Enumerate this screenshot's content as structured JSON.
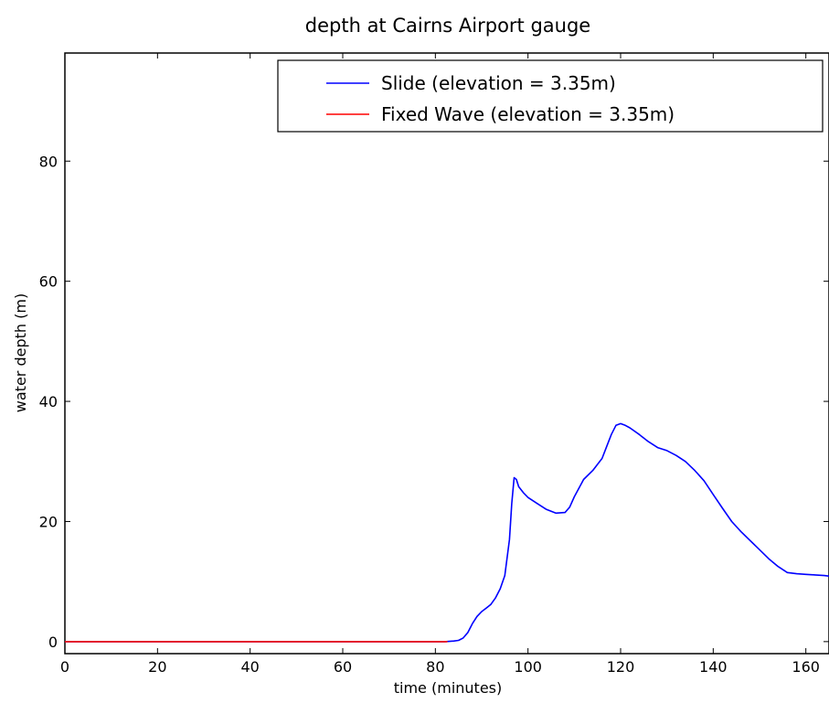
{
  "chart_data": {
    "type": "line",
    "title": "depth at Cairns Airport gauge",
    "xlabel": "time (minutes)",
    "ylabel": "water depth (m)",
    "xlim": [
      0,
      165
    ],
    "ylim": [
      -2,
      98
    ],
    "xticks": [
      0,
      20,
      40,
      60,
      80,
      100,
      120,
      140,
      160
    ],
    "yticks": [
      0,
      20,
      40,
      60,
      80
    ],
    "grid": false,
    "legend_position": "top-right",
    "series": [
      {
        "name": "Slide (elevation = 3.35m)",
        "color": "#0000ff",
        "x": [
          0,
          20,
          40,
          60,
          80,
          82,
          84,
          85,
          86,
          87,
          88,
          89,
          90,
          91,
          92,
          93,
          94,
          95,
          96,
          96.5,
          97,
          97.5,
          98,
          99,
          100,
          102,
          104,
          106,
          108,
          109,
          110,
          112,
          114,
          116,
          117,
          118,
          119,
          120,
          121,
          122,
          124,
          126,
          128,
          130,
          132,
          134,
          136,
          138,
          140,
          142,
          144,
          146,
          148,
          150,
          152,
          154,
          156,
          158,
          160,
          162,
          164,
          165
        ],
        "y": [
          0,
          0,
          0,
          0,
          0,
          0,
          0.1,
          0.2,
          0.6,
          1.5,
          3,
          4.2,
          5,
          5.6,
          6.2,
          7.3,
          8.8,
          11,
          17,
          23,
          27.3,
          27,
          25.8,
          24.8,
          24,
          23,
          22,
          21.4,
          21.5,
          22.4,
          24.1,
          27,
          28.5,
          30.5,
          32.5,
          34.5,
          36,
          36.3,
          36,
          35.6,
          34.5,
          33.3,
          32.3,
          31.8,
          31,
          30,
          28.5,
          26.8,
          24.5,
          22.2,
          20,
          18.3,
          16.8,
          15.3,
          13.8,
          12.5,
          11.5,
          11.3,
          11.2,
          11.1,
          11,
          10.9
        ]
      },
      {
        "name": "Fixed Wave (elevation = 3.35m)",
        "color": "#ff0000",
        "x": [
          0,
          20,
          40,
          60,
          80,
          82.5
        ],
        "y": [
          0,
          0,
          0,
          0,
          0,
          0
        ]
      }
    ]
  }
}
